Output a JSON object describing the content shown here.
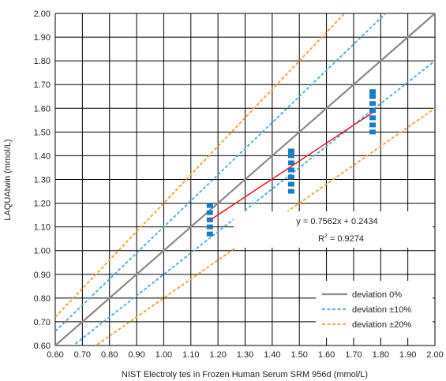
{
  "chart_data": {
    "type": "scatter",
    "xlabel": "NIST Electroly tes in Frozen Human Serum SRM 956d (mmol/L)",
    "ylabel": "LAQUAtwin (mmol/L)",
    "xlim": [
      0.6,
      2.0
    ],
    "ylim": [
      0.6,
      2.0
    ],
    "x_ticks": [
      "0.60",
      "0.70",
      "0.80",
      "0.90",
      "1.00",
      "1.10",
      "1.20",
      "1.30",
      "1.40",
      "1.50",
      "1.60",
      "1.70",
      "1.80",
      "1.90",
      "2.00"
    ],
    "y_ticks": [
      "0.60",
      "0.70",
      "0.80",
      "0.90",
      "1.00",
      "1.10",
      "1.20",
      "1.30",
      "1.40",
      "1.50",
      "1.60",
      "1.70",
      "1.80",
      "1.90",
      "2.00"
    ],
    "grid": true,
    "points": [
      {
        "x": 1.17,
        "y": 1.07
      },
      {
        "x": 1.17,
        "y": 1.1
      },
      {
        "x": 1.17,
        "y": 1.13
      },
      {
        "x": 1.17,
        "y": 1.16
      },
      {
        "x": 1.17,
        "y": 1.19
      },
      {
        "x": 1.47,
        "y": 1.25
      },
      {
        "x": 1.47,
        "y": 1.28
      },
      {
        "x": 1.47,
        "y": 1.31
      },
      {
        "x": 1.47,
        "y": 1.34
      },
      {
        "x": 1.47,
        "y": 1.37
      },
      {
        "x": 1.47,
        "y": 1.4
      },
      {
        "x": 1.47,
        "y": 1.42
      },
      {
        "x": 1.77,
        "y": 1.5
      },
      {
        "x": 1.77,
        "y": 1.53
      },
      {
        "x": 1.77,
        "y": 1.56
      },
      {
        "x": 1.77,
        "y": 1.59
      },
      {
        "x": 1.77,
        "y": 1.62
      },
      {
        "x": 1.77,
        "y": 1.65
      },
      {
        "x": 1.77,
        "y": 1.67
      }
    ],
    "regression": {
      "slope": 0.7562,
      "intercept": 0.2434,
      "x_range": [
        1.17,
        1.77
      ],
      "equation": "y = 0.7562x + 0.2434",
      "r2_prefix": "R",
      "r2_exp": "2",
      "r2_suffix": " = 0.9274"
    },
    "deviation_lines": [
      {
        "name": "deviation 0%",
        "factor": 1.0,
        "style": "solid"
      },
      {
        "name": "deviation ±10%",
        "factors": [
          1.1,
          0.9
        ],
        "style": "dashed"
      },
      {
        "name": "deviation ±20%",
        "factors": [
          1.2,
          0.8
        ],
        "style": "dashed"
      }
    ],
    "legend": {
      "placement": "bottom-right",
      "items": [
        "deviation 0%",
        "deviation ±10%",
        "deviation ±20%"
      ]
    },
    "colors": {
      "points": "#1a7cc4",
      "regression": "#e8202a",
      "dev0": "#8a8a8a",
      "dev10": "#4ca8de",
      "dev20": "#f0a030",
      "grid": "#000000"
    }
  }
}
